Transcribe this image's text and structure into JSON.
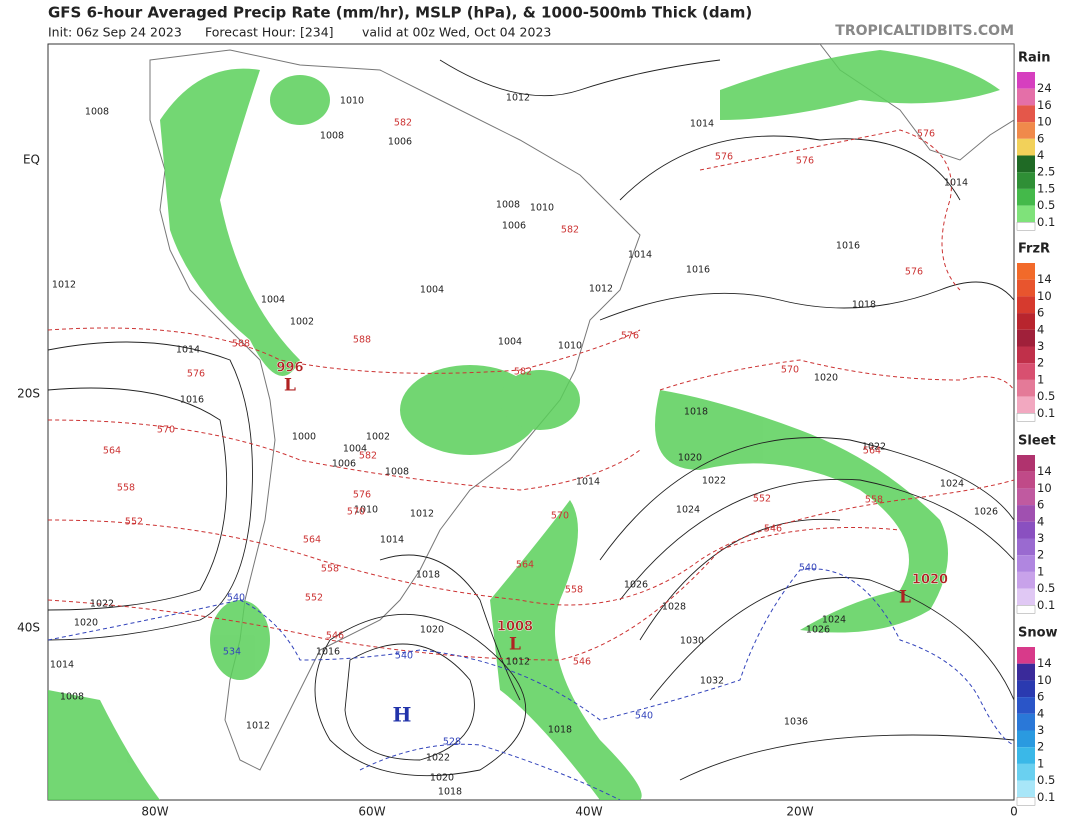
{
  "header": {
    "title": "GFS 6-hour Averaged Precip Rate (mm/hr), MSLP (hPa), & 1000-500mb Thick (dam)",
    "init": "Init: 06z Sep 24 2023",
    "forecast": "Forecast Hour: [234]",
    "valid": "valid at 00z Wed, Oct 04 2023",
    "brand": "TROPICALTIDBITS.COM"
  },
  "map": {
    "lon_labels": [
      "80W",
      "60W",
      "40W",
      "20W",
      "0"
    ],
    "lat_labels": [
      "EQ",
      "20S",
      "40S"
    ],
    "pressure_labels": [
      "1008",
      "1012",
      "1014",
      "1016",
      "1012",
      "1014",
      "1014",
      "1016",
      "1016",
      "1018",
      "1020",
      "1018",
      "1020",
      "1022",
      "1024",
      "1022",
      "1024",
      "1026",
      "1014",
      "1018",
      "1020",
      "1022",
      "1020",
      "1014",
      "1008",
      "1012",
      "1022",
      "1020",
      "1018",
      "1018",
      "1026",
      "1028",
      "1030",
      "1032",
      "1036",
      "1024",
      "1026",
      "1004",
      "1004",
      "1004",
      "1008",
      "1010",
      "1006",
      "1012",
      "1014",
      "1010",
      "1010",
      "1008",
      "1006",
      "1002",
      "1000",
      "1004",
      "1002",
      "1006",
      "1008",
      "1012",
      "1014",
      "1010",
      "1016",
      "1012"
    ],
    "thickness_labels": [
      "576",
      "576",
      "576",
      "576",
      "576",
      "570",
      "564",
      "558",
      "552",
      "546",
      "576",
      "570",
      "564",
      "558",
      "552",
      "582",
      "582",
      "588",
      "582",
      "582",
      "576",
      "570",
      "564",
      "558",
      "552",
      "546",
      "546",
      "558",
      "564",
      "570",
      "588"
    ],
    "cold_thickness_labels": [
      "540",
      "534",
      "540",
      "540",
      "528",
      "540"
    ],
    "centers": [
      {
        "pressure": "996",
        "symbol": "L"
      },
      {
        "pressure": "1008",
        "symbol": "L"
      },
      {
        "pressure": "1020",
        "symbol": "L"
      },
      {
        "symbol": "H"
      }
    ]
  },
  "legend": [
    {
      "title": "Rain",
      "labels": [
        "24",
        "16",
        "10",
        "6",
        "4",
        "2.5",
        "1.5",
        "0.5",
        "0.1"
      ],
      "colors": [
        "#d63fbf",
        "#e46fa8",
        "#e4574a",
        "#f08a4b",
        "#f2d15a",
        "#1f6a25",
        "#2f8f36",
        "#44b94a",
        "#7fe27a"
      ]
    },
    {
      "title": "FrzR",
      "labels": [
        "14",
        "10",
        "6",
        "4",
        "3",
        "2",
        "1",
        "0.5",
        "0.1"
      ],
      "colors": [
        "#f26a2a",
        "#e8552e",
        "#d63a2e",
        "#b8252e",
        "#a0203a",
        "#c0304a",
        "#d85070",
        "#e47a98",
        "#f2a8c0"
      ]
    },
    {
      "title": "Sleet",
      "labels": [
        "14",
        "10",
        "6",
        "4",
        "3",
        "2",
        "1",
        "0.5",
        "0.1"
      ],
      "colors": [
        "#b0336e",
        "#c04a88",
        "#c05aa0",
        "#a050b0",
        "#8a50c0",
        "#9a6ad0",
        "#b086e0",
        "#c8a2ea",
        "#e0c8f4"
      ]
    },
    {
      "title": "Snow",
      "labels": [
        "14",
        "10",
        "6",
        "4",
        "3",
        "2",
        "1",
        "0.5",
        "0.1"
      ],
      "colors": [
        "#d83a8a",
        "#3a2a9a",
        "#2a3ab0",
        "#2a55c8",
        "#2a78d8",
        "#2a9ae0",
        "#3ab8e8",
        "#6ad0f0",
        "#a8e6f8"
      ]
    }
  ]
}
